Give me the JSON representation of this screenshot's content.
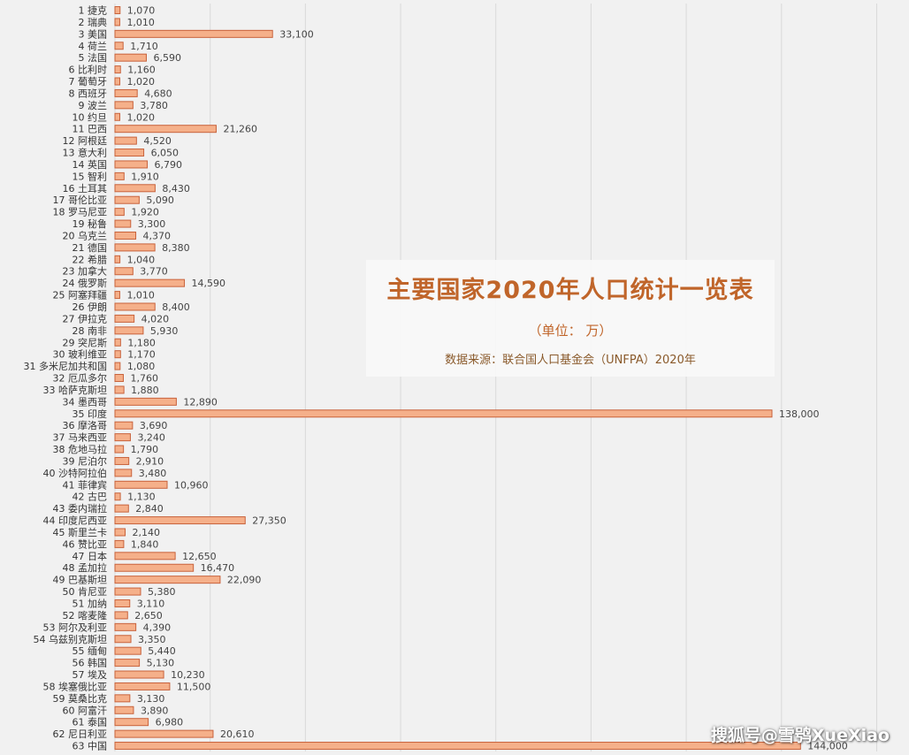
{
  "chart_data": {
    "type": "bar",
    "orientation": "horizontal",
    "title": "主要国家2020年人口统计一览表",
    "subtitle": "（单位： 万）",
    "source": "数据来源：联合国人口基金会（UNFPA）2020年",
    "categories": [
      "1 捷克",
      "2 瑞典",
      "3 美国",
      "4 荷兰",
      "5 法国",
      "6 比利时",
      "7 葡萄牙",
      "8 西班牙",
      "9 波兰",
      "10 约旦",
      "11 巴西",
      "12 阿根廷",
      "13 意大利",
      "14 英国",
      "15 智利",
      "16 土耳其",
      "17 哥伦比亚",
      "18 罗马尼亚",
      "19 秘鲁",
      "20 乌克兰",
      "21 德国",
      "22 希腊",
      "23 加拿大",
      "24 俄罗斯",
      "25 阿塞拜疆",
      "26 伊朗",
      "27 伊拉克",
      "28 南非",
      "29 突尼斯",
      "30 玻利维亚",
      "31 多米尼加共和国",
      "32 厄瓜多尔",
      "33 哈萨克斯坦",
      "34 墨西哥",
      "35 印度",
      "36 摩洛哥",
      "37 马来西亚",
      "38 危地马拉",
      "39 尼泊尔",
      "40 沙特阿拉伯",
      "41 菲律宾",
      "42 古巴",
      "43 委内瑞拉",
      "44 印度尼西亚",
      "45 斯里兰卡",
      "46 赞比亚",
      "47 日本",
      "48 孟加拉",
      "49 巴基斯坦",
      "50 肯尼亚",
      "51 加纳",
      "52 喀麦隆",
      "53 阿尔及利亚",
      "54 乌兹别克斯坦",
      "55 缅甸",
      "56 韩国",
      "57 埃及",
      "58 埃塞俄比亚",
      "59 莫桑比克",
      "60 阿富汗",
      "61 泰国",
      "62 尼日利亚",
      "63 中国"
    ],
    "values": [
      1070,
      1010,
      33100,
      1710,
      6590,
      1160,
      1020,
      4680,
      3780,
      1020,
      21260,
      4520,
      6050,
      6790,
      1910,
      8430,
      5090,
      1920,
      3300,
      4370,
      8380,
      1040,
      3770,
      14590,
      1010,
      8400,
      4020,
      5930,
      1180,
      1170,
      1080,
      1760,
      1880,
      12890,
      138000,
      3690,
      3240,
      1790,
      2910,
      3480,
      10960,
      1130,
      2840,
      27350,
      2140,
      1840,
      12650,
      16470,
      22090,
      5380,
      3110,
      2650,
      4390,
      3350,
      5440,
      5130,
      10230,
      11500,
      3130,
      3890,
      6980,
      20610,
      144000
    ],
    "value_labels": [
      "1,070",
      "1,010",
      "33,100",
      "1,710",
      "6,590",
      "1,160",
      "1,020",
      "4,680",
      "3,780",
      "1,020",
      "21,260",
      "4,520",
      "6,050",
      "6,790",
      "1,910",
      "8,430",
      "5,090",
      "1,920",
      "3,300",
      "4,370",
      "8,380",
      "1,040",
      "3,770",
      "14,590",
      "1,010",
      "8,400",
      "4,020",
      "5,930",
      "1,180",
      "1,170",
      "1,080",
      "1,760",
      "1,880",
      "12,890",
      "138,000",
      "3,690",
      "3,240",
      "1,790",
      "2,910",
      "3,480",
      "10,960",
      "1,130",
      "2,840",
      "27,350",
      "2,140",
      "1,840",
      "12,650",
      "16,470",
      "22,090",
      "5,380",
      "3,110",
      "2,650",
      "4,390",
      "3,350",
      "5,440",
      "5,130",
      "10,230",
      "11,500",
      "3,130",
      "3,890",
      "6,980",
      "20,610",
      "144,000"
    ],
    "xlim": [
      0,
      160000
    ],
    "grid": true,
    "colors": {
      "bar_fill": "#f5b08a",
      "bar_stroke": "#c8623b",
      "title": "#c0652a"
    }
  },
  "watermark": "搜狐号@雪鸮XueXiao"
}
